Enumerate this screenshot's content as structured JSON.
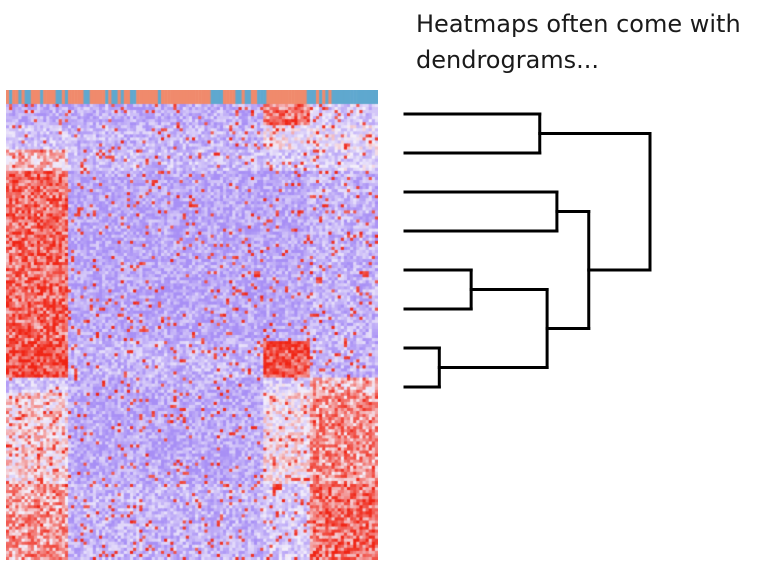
{
  "caption": {
    "line1": "Heatmaps often come with",
    "line2": "dendrograms..."
  },
  "colors": {
    "low": "#a88ff5",
    "mid": "#f4f0fb",
    "high": "#f02414",
    "annotation_a": "#5fa8cf",
    "annotation_b": "#f08a6c",
    "dendrogram": "#000000"
  },
  "heatmap": {
    "rows": 150,
    "cols": 120,
    "annotation_pattern": [
      "b",
      "a",
      "b",
      "b",
      "a",
      "b",
      "a",
      "a",
      "b",
      "b",
      "b",
      "a",
      "b",
      "b",
      "b",
      "b",
      "a",
      "a",
      "b",
      "a",
      "b",
      "b",
      "b",
      "b",
      "b",
      "a",
      "a",
      "b",
      "b",
      "b",
      "b",
      "b",
      "a",
      "b",
      "a",
      "a",
      "b",
      "a",
      "b",
      "b",
      "a",
      "a",
      "b",
      "b",
      "b",
      "b",
      "b",
      "b",
      "b",
      "a",
      "b",
      "b",
      "b",
      "b",
      "b",
      "b",
      "b",
      "b",
      "b",
      "b",
      "b",
      "b",
      "b",
      "b",
      "b",
      "b",
      "a",
      "a",
      "a",
      "a",
      "b",
      "b",
      "b",
      "b",
      "a",
      "a",
      "b",
      "a",
      "a",
      "b",
      "b",
      "a",
      "a",
      "a",
      "b",
      "b",
      "b",
      "b",
      "b",
      "b",
      "b",
      "b",
      "b",
      "b",
      "b",
      "b",
      "b",
      "a",
      "a",
      "a",
      "b",
      "a",
      "b",
      "a",
      "b",
      "a",
      "a",
      "a",
      "a",
      "a",
      "a",
      "a",
      "a",
      "a",
      "a",
      "a",
      "a",
      "a",
      "a",
      "a"
    ]
  },
  "dendrogram": {
    "leaves": [
      "leaf-1",
      "leaf-2",
      "leaf-3",
      "leaf-4",
      "leaf-5",
      "leaf-6",
      "leaf-7",
      "leaf-8"
    ],
    "merges": [
      {
        "a": "leaf-1",
        "b": "leaf-2",
        "height": 0.55
      },
      {
        "a": "leaf-3",
        "b": "leaf-4",
        "height": 0.62
      },
      {
        "a": "leaf-5",
        "b": "leaf-6",
        "height": 0.27
      },
      {
        "a": "leaf-7",
        "b": "leaf-8",
        "height": 0.14
      },
      {
        "a": "m3",
        "b": "m4",
        "height": 0.58
      },
      {
        "a": "m2",
        "b": "m5",
        "height": 0.75
      },
      {
        "a": "m1",
        "b": "m6",
        "height": 1.0
      }
    ]
  }
}
